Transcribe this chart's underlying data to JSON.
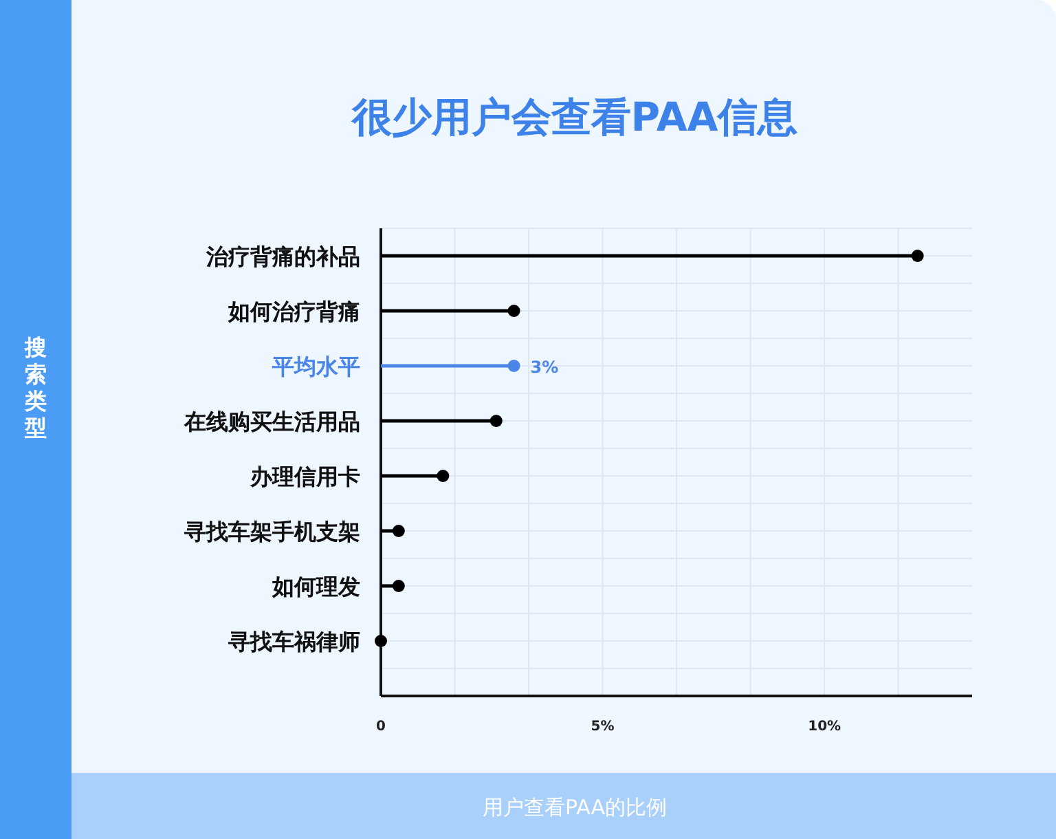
{
  "chart_data": {
    "type": "lollipop",
    "orientation": "horizontal",
    "title": "很少用户会查看PAA信息",
    "annotations": [
      "搜索类型"
    ],
    "xlabel": "用户查看PAA的比例",
    "categories": [
      "治疗背痛的补品",
      "如何治疗背痛",
      "平均水平",
      "在线购买生活用品",
      "办理信用卡",
      "寻找车架手机支架",
      "如何理发",
      "寻找车祸律师"
    ],
    "values": [
      12.1,
      3,
      3,
      2.6,
      1.4,
      0.4,
      0.4,
      0
    ],
    "colors": [
      "#000000",
      "#000000",
      "#4a86e8",
      "#000000",
      "#000000",
      "#000000",
      "#000000",
      "#000000"
    ],
    "value_labels": [
      null,
      null,
      "3%",
      null,
      null,
      null,
      null,
      null
    ],
    "xlim": [
      0,
      13.33
    ],
    "xticks": [
      {
        "value": 0,
        "label": "0"
      },
      {
        "value": 5,
        "label": "5%"
      },
      {
        "value": 10,
        "label": "10%"
      }
    ],
    "grid": true,
    "marker": "circle"
  }
}
